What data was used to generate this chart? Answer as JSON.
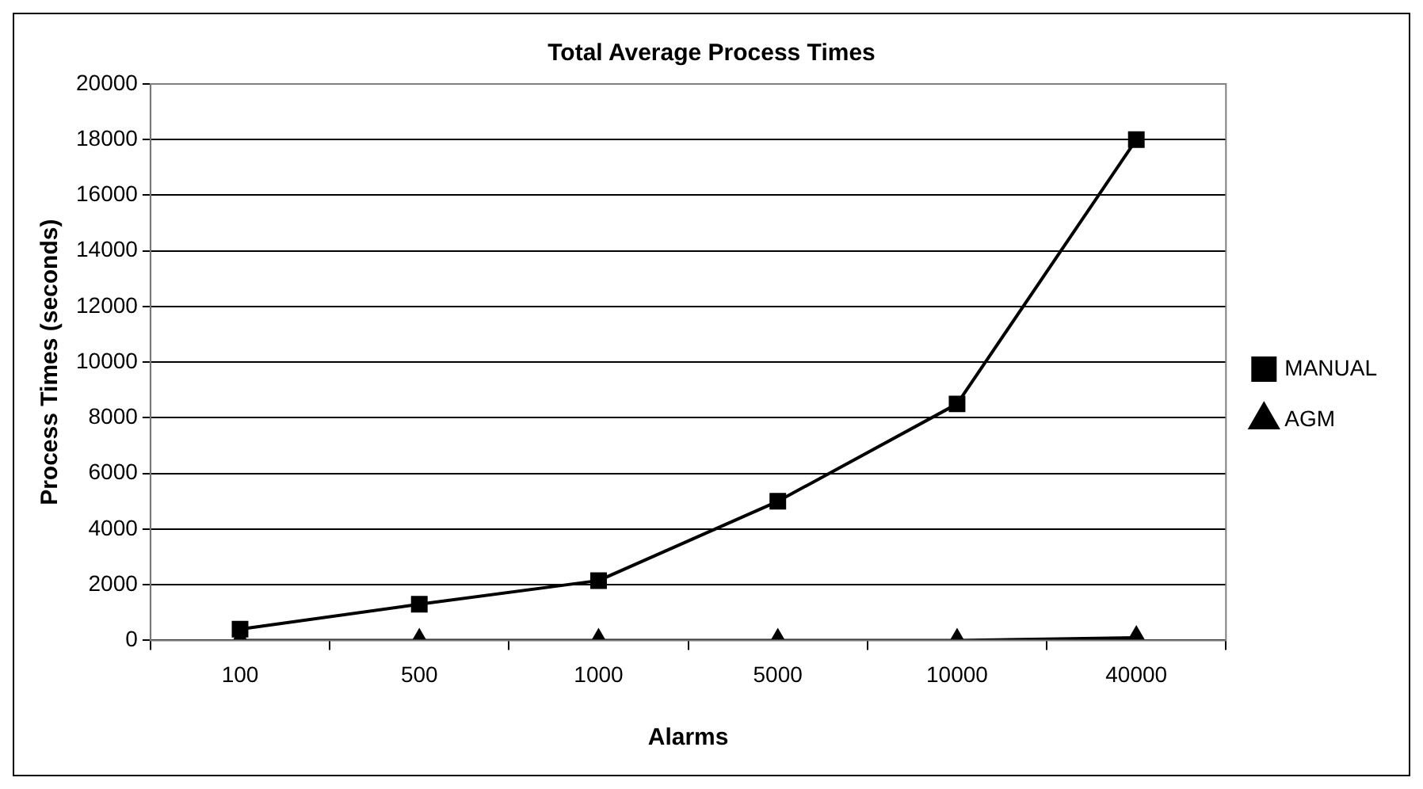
{
  "chart_data": {
    "type": "line",
    "title": "Total Average Process Times",
    "xlabel": "Alarms",
    "ylabel": "Process Times (seconds)",
    "categories": [
      "100",
      "500",
      "1000",
      "5000",
      "10000",
      "40000"
    ],
    "series": [
      {
        "name": "MANUAL",
        "color": "#000000",
        "marker": "square",
        "values": [
          400,
          1300,
          2150,
          5000,
          8500,
          18000
        ]
      },
      {
        "name": "AGM",
        "color": "#000000",
        "marker": "triangle",
        "values": [
          0,
          0,
          0,
          0,
          0,
          100
        ]
      }
    ],
    "ylim": [
      0,
      20000
    ],
    "yticks": [
      0,
      2000,
      4000,
      6000,
      8000,
      10000,
      12000,
      14000,
      16000,
      18000,
      20000
    ],
    "grid": "y",
    "legend": "right",
    "line_style": "solid"
  }
}
